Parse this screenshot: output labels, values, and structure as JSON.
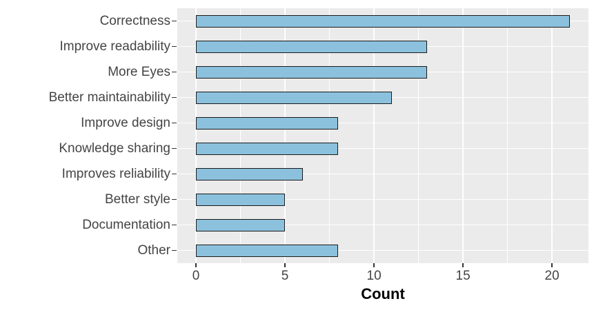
{
  "chart_data": {
    "type": "bar",
    "orientation": "horizontal",
    "title": "",
    "xlabel": "Count",
    "ylabel": "",
    "categories": [
      "Correctness",
      "Improve readability",
      "More Eyes",
      "Better maintainability",
      "Improve design",
      "Knowledge sharing",
      "Improves reliability",
      "Better style",
      "Documentation",
      "Other"
    ],
    "values": [
      21,
      13,
      13,
      11,
      8,
      8,
      6,
      5,
      5,
      8
    ],
    "xlim": [
      -1.05,
      22.05
    ],
    "x_major_ticks": [
      0,
      5,
      10,
      15,
      20
    ],
    "x_minor_ticks": [
      2.5,
      7.5,
      12.5,
      17.5
    ],
    "grid": "white major+minor vertical lines, white horizontal line at each category center, on grey panel",
    "legend_position": "none",
    "style": {
      "bar_fill": "#8CC1DD",
      "bar_stroke": "#1a1a1a",
      "panel_background": "#EBEBEB",
      "grid_color": "#FFFFFF",
      "tick_text_color": "#444444",
      "axis_title_color": "#000000",
      "figure_background": "#FFFFFF"
    }
  }
}
